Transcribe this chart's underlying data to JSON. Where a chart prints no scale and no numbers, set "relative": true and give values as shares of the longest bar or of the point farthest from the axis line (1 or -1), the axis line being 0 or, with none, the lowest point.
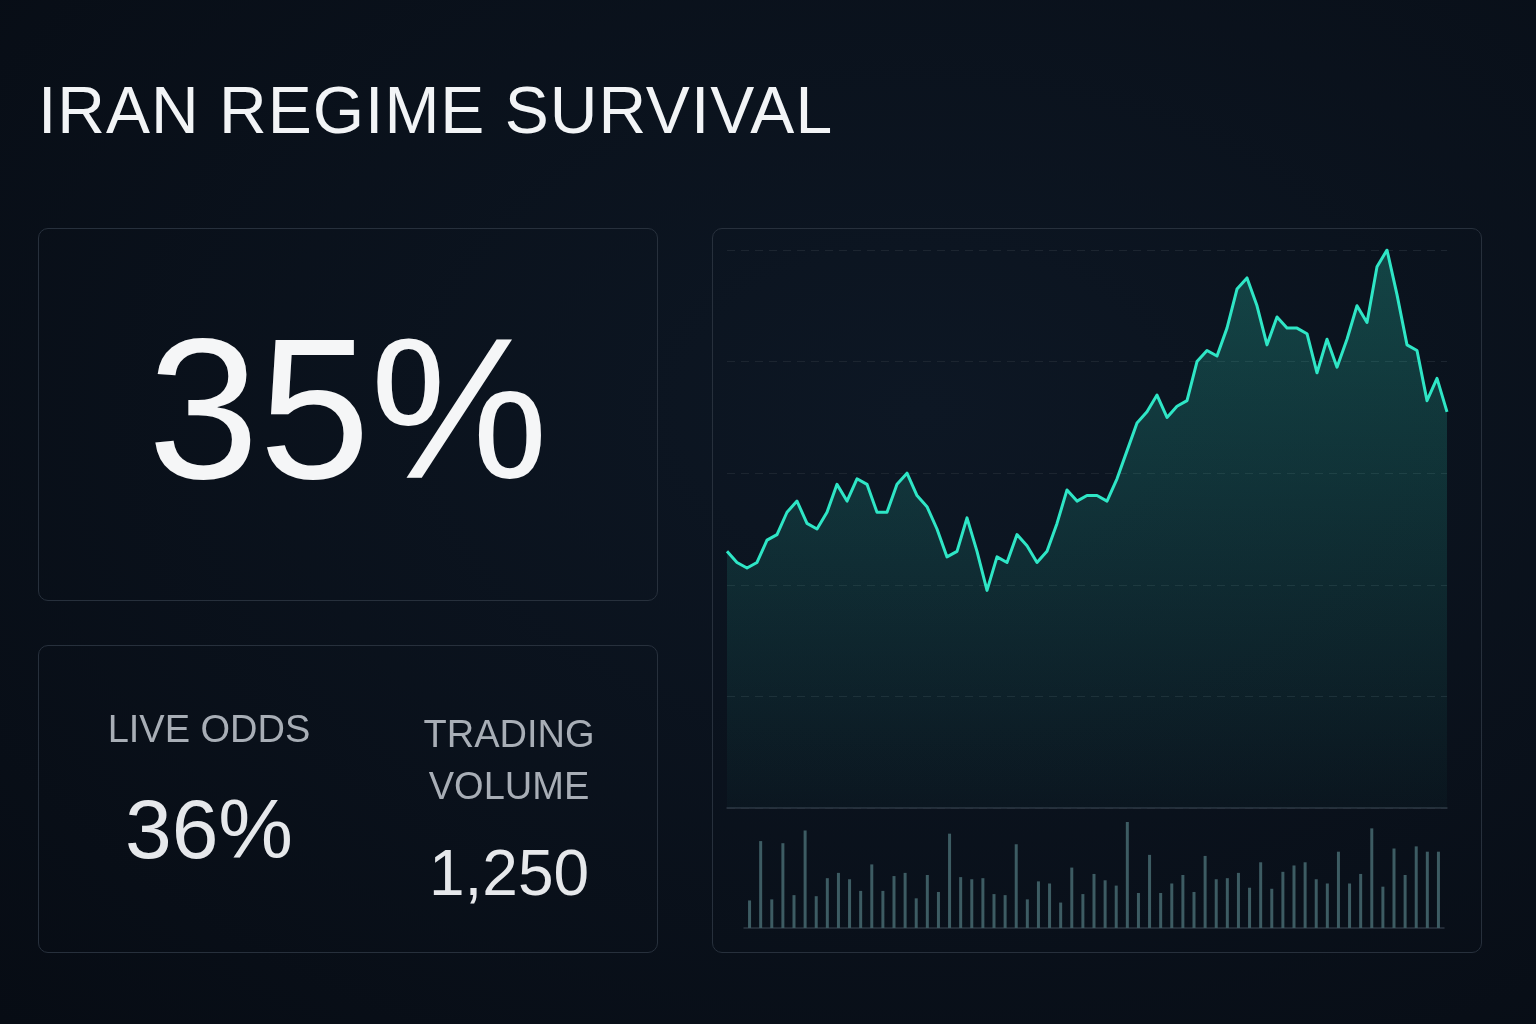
{
  "chart_data": [
    {
      "type": "other",
      "title": "IRAN REGIME SURVIVAL",
      "annotations": [
        "35%",
        "LIVE ODDS",
        "36%",
        "TRADING VOLUME",
        "1,250"
      ]
    },
    {
      "type": "area",
      "relative": true,
      "grid": "y",
      "color": "#2fe6c6",
      "categories": [
        null,
        null,
        null,
        null,
        null,
        null,
        null,
        null,
        null,
        null,
        null,
        null,
        null,
        null,
        null,
        null,
        null,
        null,
        null,
        null,
        null,
        null,
        null,
        null,
        null,
        null,
        null,
        null,
        null,
        null,
        null,
        null,
        null,
        null,
        null,
        null,
        null,
        null,
        null,
        null,
        null,
        null,
        null,
        null,
        null,
        null,
        null,
        null,
        null,
        null,
        null,
        null,
        null,
        null,
        null,
        null,
        null,
        null,
        null,
        null,
        null,
        null,
        null,
        null,
        null,
        null,
        null,
        null,
        null,
        null,
        null,
        null,
        null
      ],
      "values": [
        0.46,
        0.44,
        0.43,
        0.44,
        0.48,
        0.49,
        0.53,
        0.55,
        0.51,
        0.5,
        0.53,
        0.58,
        0.55,
        0.59,
        0.58,
        0.53,
        0.53,
        0.58,
        0.6,
        0.56,
        0.54,
        0.5,
        0.45,
        0.46,
        0.52,
        0.46,
        0.39,
        0.45,
        0.44,
        0.49,
        0.47,
        0.44,
        0.46,
        0.51,
        0.57,
        0.55,
        0.56,
        0.56,
        0.55,
        0.59,
        0.64,
        0.69,
        0.71,
        0.74,
        0.7,
        0.72,
        0.73,
        0.8,
        0.82,
        0.81,
        0.86,
        0.93,
        0.95,
        0.9,
        0.83,
        0.88,
        0.86,
        0.86,
        0.85,
        0.78,
        0.84,
        0.79,
        0.84,
        0.9,
        0.87,
        0.97,
        1,
        0.92,
        0.83,
        0.82,
        0.73,
        0.77,
        0.71
      ]
    },
    {
      "type": "bar",
      "relative": true,
      "color": "#3d5c63",
      "categories": [
        null,
        null,
        null,
        null,
        null,
        null,
        null,
        null,
        null,
        null,
        null,
        null,
        null,
        null,
        null,
        null,
        null,
        null,
        null,
        null,
        null,
        null,
        null,
        null,
        null,
        null,
        null,
        null,
        null,
        null,
        null,
        null,
        null,
        null,
        null,
        null,
        null,
        null,
        null,
        null,
        null,
        null,
        null,
        null,
        null,
        null,
        null,
        null,
        null,
        null,
        null,
        null,
        null,
        null,
        null,
        null,
        null,
        null,
        null,
        null,
        null,
        null,
        null
      ],
      "values": [
        0.26,
        0.82,
        0.27,
        0.8,
        0.31,
        0.92,
        0.3,
        0.47,
        0.52,
        0.46,
        0.35,
        0.6,
        0.35,
        0.49,
        0.52,
        0.28,
        0.5,
        0.34,
        0.89,
        0.48,
        0.46,
        0.47,
        0.32,
        0.31,
        0.79,
        0.27,
        0.44,
        0.42,
        0.24,
        0.57,
        0.32,
        0.51,
        0.45,
        0.4,
        1,
        0.33,
        0.69,
        0.33,
        0.42,
        0.5,
        0.34,
        0.68,
        0.46,
        0.47,
        0.52,
        0.38,
        0.62,
        0.37,
        0.53,
        0.59,
        0.62,
        0.46,
        0.42,
        0.72,
        0.42,
        0.51,
        0.94,
        0.39,
        0.75,
        0.5,
        0.77,
        0.72,
        0.72
      ]
    }
  ]
}
